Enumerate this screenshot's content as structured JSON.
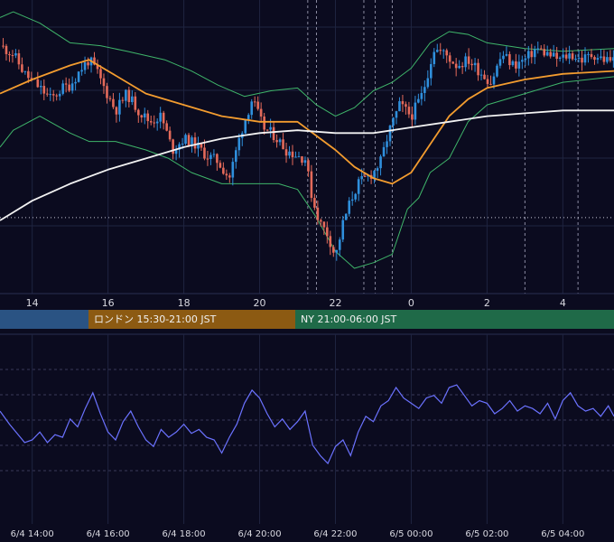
{
  "colors": {
    "background": "#0b0b1f",
    "grid": "#1f2440",
    "candle_up": "#2f8fdc",
    "candle_down": "#e46a5a",
    "ma_short": "#f39c2f",
    "ma_long": "#f2f2f2",
    "bollinger": "#3fb56a",
    "oscillator": "#6b72ff",
    "session_tokyo": "#2a5383",
    "session_london": "#8c5a12",
    "session_ny": "#1f6a48"
  },
  "sessions": [
    {
      "id": "tokyo",
      "label": ""
    },
    {
      "id": "london",
      "label": "ロンドン 15:30-21:00 JST"
    },
    {
      "id": "ny",
      "label": "NY 21:00-06:00 JST"
    }
  ],
  "chart_data": [
    {
      "type": "candlestick",
      "panel": "price",
      "x_tick_labels": [
        "14",
        "16",
        "18",
        "20",
        "22",
        "0",
        "2",
        "4"
      ],
      "x_ticks_hours": [
        14,
        16,
        18,
        20,
        22,
        24,
        26,
        28
      ],
      "x_range_hours": [
        13.15,
        29.35
      ],
      "y_range": [
        0,
        100
      ],
      "y_axis_labels": [],
      "reference_line": {
        "style": "dotted",
        "value": 26
      },
      "event_lines_hours": [
        21.27,
        21.5,
        22.75,
        23.05,
        23.5,
        27.0,
        28.4
      ],
      "series": [
        {
          "kind": "ma",
          "color_key": "ma_short",
          "points": [
            [
              13.15,
              70
            ],
            [
              14,
              75
            ],
            [
              15,
              80
            ],
            [
              15.5,
              82
            ],
            [
              16,
              78
            ],
            [
              17,
              70
            ],
            [
              18,
              66
            ],
            [
              19,
              62
            ],
            [
              20,
              60
            ],
            [
              21,
              60
            ],
            [
              21.5,
              55
            ],
            [
              22,
              50
            ],
            [
              22.5,
              44
            ],
            [
              23,
              40
            ],
            [
              23.5,
              38
            ],
            [
              24,
              42
            ],
            [
              24.5,
              52
            ],
            [
              25,
              62
            ],
            [
              25.5,
              68
            ],
            [
              26,
              72
            ],
            [
              27,
              75
            ],
            [
              28,
              77
            ],
            [
              29.35,
              78
            ]
          ]
        },
        {
          "kind": "ma",
          "color_key": "ma_long",
          "points": [
            [
              13.15,
              25
            ],
            [
              14,
              32
            ],
            [
              15,
              38
            ],
            [
              16,
              43
            ],
            [
              17,
              47
            ],
            [
              18,
              51
            ],
            [
              19,
              54
            ],
            [
              20,
              56
            ],
            [
              21,
              57
            ],
            [
              22,
              56
            ],
            [
              23,
              56
            ],
            [
              24,
              58
            ],
            [
              25,
              60
            ],
            [
              26,
              62
            ],
            [
              27,
              63
            ],
            [
              28,
              64
            ],
            [
              29.35,
              64
            ]
          ]
        },
        {
          "kind": "bollinger_upper",
          "color_key": "bollinger",
          "points": [
            [
              13.15,
              97
            ],
            [
              13.5,
              99
            ],
            [
              14.2,
              95
            ],
            [
              15,
              88
            ],
            [
              15.8,
              87
            ],
            [
              16.5,
              85
            ],
            [
              17.5,
              82
            ],
            [
              18.2,
              78
            ],
            [
              18.9,
              73
            ],
            [
              19.6,
              69
            ],
            [
              20.3,
              71
            ],
            [
              21,
              72
            ],
            [
              21.5,
              66
            ],
            [
              22,
              62
            ],
            [
              22.5,
              65
            ],
            [
              23,
              71
            ],
            [
              23.5,
              74
            ],
            [
              24,
              79
            ],
            [
              24.5,
              88
            ],
            [
              25,
              92
            ],
            [
              25.5,
              91
            ],
            [
              26,
              88
            ],
            [
              27,
              86
            ],
            [
              28,
              85
            ],
            [
              29.35,
              86
            ]
          ]
        },
        {
          "kind": "bollinger_lower",
          "color_key": "bollinger",
          "points": [
            [
              13.15,
              51
            ],
            [
              13.5,
              57
            ],
            [
              14.2,
              62
            ],
            [
              15,
              56
            ],
            [
              15.5,
              53
            ],
            [
              16.2,
              53
            ],
            [
              17,
              50
            ],
            [
              17.6,
              47
            ],
            [
              18.2,
              42
            ],
            [
              19,
              38
            ],
            [
              19.6,
              38
            ],
            [
              20.5,
              38
            ],
            [
              21,
              36
            ],
            [
              21.5,
              26
            ],
            [
              22,
              14
            ],
            [
              22.5,
              8
            ],
            [
              23,
              10
            ],
            [
              23.5,
              13
            ],
            [
              23.9,
              29
            ],
            [
              24.2,
              33
            ],
            [
              24.5,
              42
            ],
            [
              25,
              47
            ],
            [
              25.5,
              60
            ],
            [
              26,
              66
            ],
            [
              27,
              70
            ],
            [
              28,
              74
            ],
            [
              29.35,
              76
            ]
          ]
        },
        {
          "kind": "close",
          "points": [
            [
              13.15,
              87
            ],
            [
              13.5,
              84
            ],
            [
              13.8,
              77
            ],
            [
              14.2,
              72
            ],
            [
              14.5,
              68
            ],
            [
              14.8,
              72
            ],
            [
              15,
              73
            ],
            [
              15.3,
              79
            ],
            [
              15.5,
              82
            ],
            [
              15.7,
              78
            ],
            [
              15.9,
              72
            ],
            [
              16.2,
              64
            ],
            [
              16.5,
              70
            ],
            [
              16.8,
              64
            ],
            [
              17.1,
              60
            ],
            [
              17.4,
              62
            ],
            [
              17.7,
              50
            ],
            [
              18,
              54
            ],
            [
              18.3,
              52
            ],
            [
              18.6,
              48
            ],
            [
              18.9,
              46
            ],
            [
              19.2,
              40
            ],
            [
              19.5,
              56
            ],
            [
              19.8,
              68
            ],
            [
              20.1,
              58
            ],
            [
              20.4,
              55
            ],
            [
              20.7,
              50
            ],
            [
              21,
              48
            ],
            [
              21.2,
              47
            ],
            [
              21.4,
              32
            ],
            [
              21.6,
              24
            ],
            [
              21.8,
              20
            ],
            [
              22,
              12
            ],
            [
              22.2,
              24
            ],
            [
              22.4,
              32
            ],
            [
              22.6,
              38
            ],
            [
              22.8,
              40
            ],
            [
              23,
              42
            ],
            [
              23.2,
              46
            ],
            [
              23.4,
              56
            ],
            [
              23.7,
              66
            ],
            [
              24,
              62
            ],
            [
              24.3,
              70
            ],
            [
              24.6,
              86
            ],
            [
              24.9,
              84
            ],
            [
              25.2,
              80
            ],
            [
              25.5,
              82
            ],
            [
              25.8,
              78
            ],
            [
              26.1,
              74
            ],
            [
              26.4,
              84
            ],
            [
              26.7,
              80
            ],
            [
              27,
              82
            ],
            [
              27.3,
              86
            ],
            [
              27.6,
              84
            ],
            [
              27.9,
              82
            ],
            [
              28.2,
              84
            ],
            [
              28.5,
              82
            ],
            [
              28.8,
              84
            ],
            [
              29.1,
              82
            ],
            [
              29.35,
              82
            ]
          ]
        }
      ]
    },
    {
      "type": "line",
      "panel": "oscillator",
      "x_tick_labels": [
        "6/4 14:00",
        "6/4 16:00",
        "6/4 18:00",
        "6/4 20:00",
        "6/4 22:00",
        "6/5 00:00",
        "6/5 02:00",
        "6/5 04:00"
      ],
      "x_range_hours": [
        13.15,
        29.35
      ],
      "y_range": [
        0,
        100
      ],
      "y_axis_labels": [],
      "x": [
        13.15,
        13.4,
        13.6,
        13.8,
        14.0,
        14.2,
        14.4,
        14.6,
        14.8,
        15.0,
        15.2,
        15.4,
        15.6,
        15.8,
        16.0,
        16.2,
        16.4,
        16.6,
        16.8,
        17.0,
        17.2,
        17.4,
        17.6,
        17.8,
        18.0,
        18.2,
        18.4,
        18.6,
        18.8,
        19.0,
        19.2,
        19.4,
        19.6,
        19.8,
        20.0,
        20.2,
        20.4,
        20.6,
        20.8,
        21.0,
        21.2,
        21.4,
        21.6,
        21.8,
        22.0,
        22.2,
        22.4,
        22.6,
        22.8,
        23.0,
        23.2,
        23.4,
        23.6,
        23.8,
        24.0,
        24.2,
        24.4,
        24.6,
        24.8,
        25.0,
        25.2,
        25.4,
        25.6,
        25.8,
        26.0,
        26.2,
        26.4,
        26.6,
        26.8,
        27.0,
        27.2,
        27.4,
        27.6,
        27.8,
        28.0,
        28.2,
        28.4,
        28.6,
        28.8,
        29.0,
        29.2,
        29.35
      ],
      "values": [
        62,
        52,
        45,
        38,
        40,
        46,
        38,
        44,
        42,
        56,
        50,
        64,
        76,
        60,
        46,
        40,
        54,
        62,
        50,
        40,
        35,
        48,
        42,
        46,
        52,
        45,
        48,
        42,
        40,
        30,
        42,
        52,
        68,
        78,
        72,
        60,
        50,
        56,
        48,
        54,
        62,
        36,
        28,
        22,
        35,
        40,
        28,
        46,
        58,
        54,
        66,
        70,
        80,
        72,
        68,
        64,
        72,
        74,
        68,
        80,
        82,
        74,
        66,
        70,
        68,
        60,
        64,
        70,
        62,
        66,
        64,
        60,
        68,
        56,
        70,
        76,
        66,
        62,
        64,
        58,
        66,
        58
      ]
    }
  ]
}
